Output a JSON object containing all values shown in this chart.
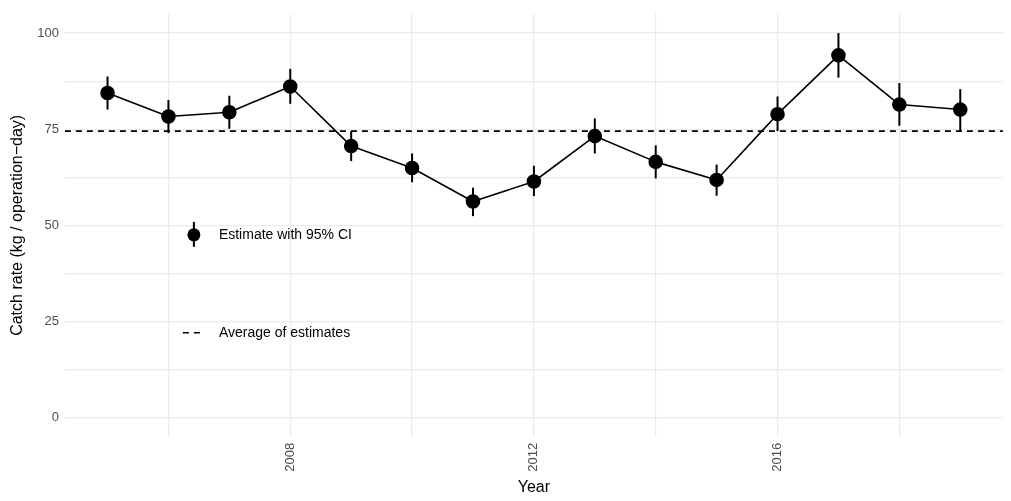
{
  "chart_data": {
    "type": "line",
    "xlabel": "Year",
    "ylabel": "Catch rate (kg / operation−day)",
    "x": [
      2005,
      2006,
      2007,
      2008,
      2009,
      2010,
      2011,
      2012,
      2013,
      2014,
      2015,
      2016,
      2017,
      2018,
      2019
    ],
    "series": [
      {
        "name": "Estimate with 95% CI",
        "color": "#000000",
        "values": [
          84.4,
          78.3,
          79.4,
          86.1,
          70.6,
          64.9,
          56.2,
          61.4,
          73.2,
          66.5,
          61.8,
          78.9,
          94.2,
          81.4,
          80.1
        ],
        "errors": [
          [
            80.1,
            88.7
          ],
          [
            74.0,
            82.6
          ],
          [
            75.1,
            83.7
          ],
          [
            81.6,
            90.7
          ],
          [
            66.7,
            74.5
          ],
          [
            61.2,
            68.7
          ],
          [
            52.4,
            59.8
          ],
          [
            57.6,
            65.5
          ],
          [
            68.7,
            77.8
          ],
          [
            62.2,
            70.8
          ],
          [
            57.7,
            65.8
          ],
          [
            74.5,
            83.5
          ],
          [
            88.4,
            100
          ],
          [
            75.9,
            87.0
          ],
          [
            74.5,
            85.4
          ]
        ]
      }
    ],
    "ref_lines": [
      {
        "axis": "y",
        "value": 74.5,
        "label": "Average of estimates",
        "color": "#000000",
        "line_style": "dashed"
      }
    ],
    "xlim": [
      2004.3,
      2019.7
    ],
    "xticks": [
      {
        "value": 2006,
        "label": null
      },
      2008,
      {
        "value": 2010,
        "label": null
      },
      2012,
      {
        "value": 2014,
        "label": null
      },
      2016,
      {
        "value": 2018,
        "label": null
      }
    ],
    "ylim": [
      -5,
      105
    ],
    "yticks": [
      0,
      {
        "value": 12.5,
        "label": null
      },
      25,
      {
        "value": 37.5,
        "label": null
      },
      50,
      {
        "value": 62.5,
        "label": null
      },
      75,
      {
        "value": 87.5,
        "label": null
      },
      100
    ],
    "grid": true,
    "legend": "left",
    "marker": "circle",
    "line_style": "solid"
  }
}
